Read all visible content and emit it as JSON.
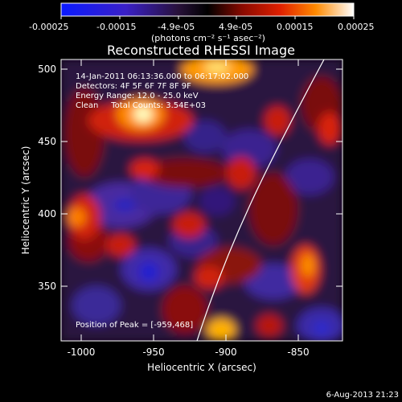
{
  "colorbar": {
    "ticks": [
      "-0.00025",
      "-0.00015",
      "-4.9e-05",
      "4.9e-05",
      "0.00015",
      "0.00025"
    ],
    "unit_label": "(photons cm⁻² s⁻¹ asec⁻²)"
  },
  "title": "Reconstructed RHESSI Image",
  "info": {
    "time": "14-Jan-2011 06:13:36.000 to 06:17:02.000",
    "detectors": "Detectors: 4F 5F 6F 7F 8F 9F",
    "energy": "Energy Range: 12.0 - 25.0 keV",
    "clean": "Clean     Total Counts: 3.54E+03"
  },
  "peak": "Position of Peak = [-959,468]",
  "axes": {
    "xlabel": "Heliocentric X (arcsec)",
    "ylabel": "Heliocentric Y (arcsec)",
    "xticks": [
      "-1000",
      "-950",
      "-900",
      "-850"
    ],
    "yticks": [
      "500",
      "450",
      "400",
      "350"
    ]
  },
  "footer_date": "6-Aug-2013 21:23",
  "colors": {
    "background": "#000000",
    "axis": "#ffffff",
    "limb": "#ffffff"
  }
}
